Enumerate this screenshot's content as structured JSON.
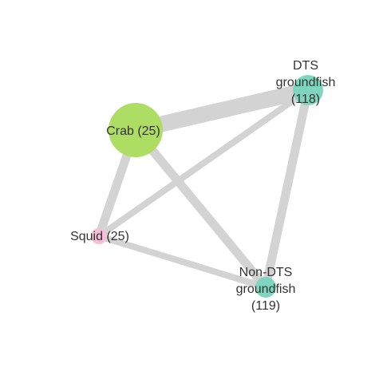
{
  "graph": {
    "colors": {
      "edge": "#d3d3d3",
      "label": "#333333"
    },
    "nodes": [
      {
        "id": "crab",
        "label_lines": [
          "Crab (25)"
        ],
        "color": "#aedd63",
        "relative_size": "large"
      },
      {
        "id": "dts",
        "label_lines": [
          "DTS",
          "groundfish",
          "(118)"
        ],
        "color": "#7fd6c0",
        "relative_size": "medium"
      },
      {
        "id": "squid",
        "label_lines": [
          "Squid (25)"
        ],
        "color": "#f7bfd5",
        "relative_size": "small"
      },
      {
        "id": "nondts",
        "label_lines": [
          "Non-DTS",
          "groundfish",
          "(119)"
        ],
        "color": "#7fd6c0",
        "relative_size": "small"
      }
    ],
    "edges": [
      {
        "source": "crab",
        "target": "dts",
        "relative_weight": "heaviest"
      },
      {
        "source": "crab",
        "target": "squid",
        "relative_weight": "medium"
      },
      {
        "source": "crab",
        "target": "nondts",
        "relative_weight": "medium"
      },
      {
        "source": "squid",
        "target": "dts",
        "relative_weight": "light"
      },
      {
        "source": "dts",
        "target": "nondts",
        "relative_weight": "medium"
      },
      {
        "source": "squid",
        "target": "nondts",
        "relative_weight": "light"
      }
    ]
  }
}
